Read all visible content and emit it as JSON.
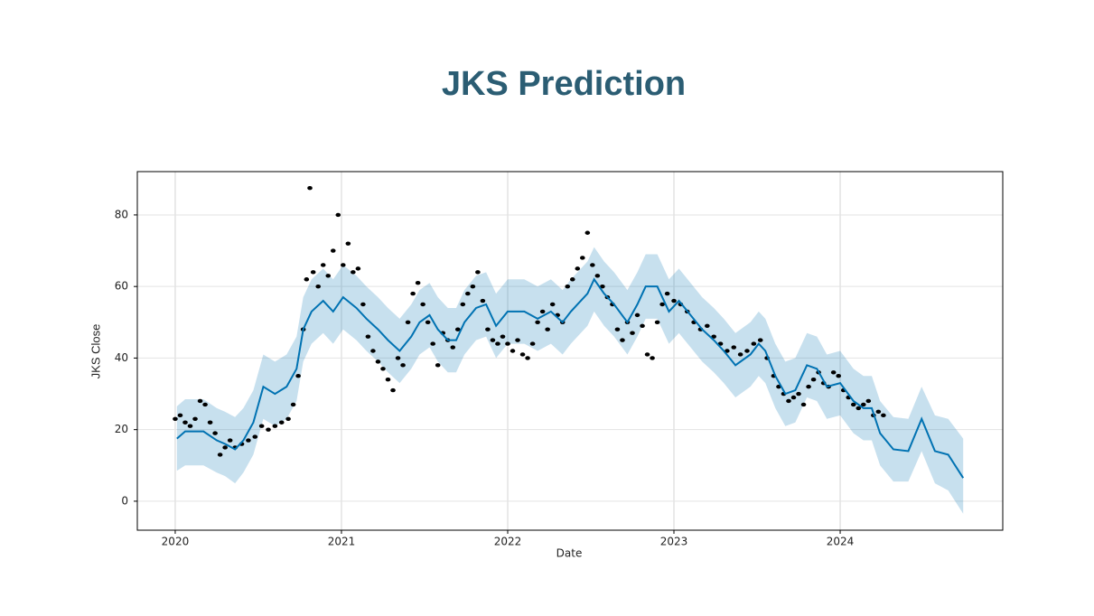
{
  "chart_data": {
    "type": "forecast",
    "title": "JKS Prediction",
    "xlabel": "Date",
    "ylabel": "JKS Close",
    "xlim": [
      2019.772,
      2024.978
    ],
    "ylim": [
      -8.1,
      92.1
    ],
    "xticks": [
      2020,
      2021,
      2022,
      2023,
      2024
    ],
    "yticks": [
      0,
      20,
      40,
      60,
      80
    ],
    "grid": true,
    "forecast": {
      "color": "#0072B2",
      "x": [
        2020.01,
        2020.06,
        2020.17,
        2020.25,
        2020.3,
        2020.36,
        2020.41,
        2020.47,
        2020.53,
        2020.6,
        2020.67,
        2020.73,
        2020.77,
        2020.82,
        2020.89,
        2020.95,
        2021.01,
        2021.09,
        2021.15,
        2021.22,
        2021.28,
        2021.35,
        2021.42,
        2021.47,
        2021.53,
        2021.58,
        2021.64,
        2021.69,
        2021.74,
        2021.81,
        2021.87,
        2021.93,
        2022.0,
        2022.1,
        2022.18,
        2022.26,
        2022.33,
        2022.38,
        2022.42,
        2022.48,
        2022.52,
        2022.58,
        2022.64,
        2022.72,
        2022.78,
        2022.83,
        2022.9,
        2022.97,
        2023.03,
        2023.1,
        2023.17,
        2023.24,
        2023.3,
        2023.37,
        2023.46,
        2023.51,
        2023.55,
        2023.61,
        2023.67,
        2023.73,
        2023.8,
        2023.86,
        2023.92,
        2024.0,
        2024.08,
        2024.14,
        2024.19,
        2024.24,
        2024.32,
        2024.41,
        2024.49,
        2024.57,
        2024.65,
        2024.74
      ],
      "values": [
        17.5,
        19.5,
        19.5,
        17,
        16,
        14.5,
        17,
        22,
        32,
        30,
        32,
        37,
        48,
        53,
        56,
        53,
        57,
        54,
        51,
        48,
        45,
        42,
        46,
        50,
        52,
        48,
        45,
        45,
        50,
        54,
        55,
        49,
        53,
        53,
        51,
        53,
        50,
        53,
        55,
        58,
        62,
        58,
        55,
        50,
        55,
        60,
        60,
        53,
        56,
        52,
        48,
        45,
        42,
        38,
        41,
        44,
        42,
        35,
        30,
        31,
        38,
        37,
        32,
        33,
        28,
        26,
        26,
        19,
        14.5,
        14,
        23,
        14,
        13,
        6.5
      ],
      "lower": [
        8.5,
        10,
        10,
        8,
        7,
        5,
        8,
        13,
        23,
        21,
        23,
        28,
        39,
        44,
        47,
        44,
        48,
        45,
        42,
        39,
        36,
        33,
        37,
        41,
        43,
        39,
        36,
        36,
        41,
        45,
        46,
        40,
        44,
        44,
        42,
        44,
        41,
        44,
        46,
        49,
        53,
        49,
        46,
        41,
        46,
        51,
        51,
        44,
        47,
        43,
        39,
        36,
        33,
        29,
        32,
        35,
        33,
        26,
        21,
        22,
        29,
        28,
        23,
        24,
        19,
        17,
        17,
        10,
        5.5,
        5.5,
        14,
        5,
        3,
        -3.5
      ],
      "upper": [
        26.5,
        28.5,
        28.5,
        26,
        25,
        23.5,
        26,
        31,
        41,
        39,
        41,
        46,
        57,
        62,
        65,
        62,
        66,
        63,
        60,
        57,
        54,
        51,
        55,
        59,
        61,
        57,
        54,
        54,
        59,
        63,
        64,
        58,
        62,
        62,
        60,
        62,
        59,
        62,
        64,
        67,
        71,
        67,
        64,
        59,
        64,
        69,
        69,
        62,
        65,
        61,
        57,
        54,
        51,
        47,
        50,
        53,
        51,
        44,
        39,
        40,
        47,
        46,
        41,
        42,
        37,
        35,
        35,
        28,
        23.5,
        23,
        32,
        24,
        23,
        17.5
      ]
    },
    "actual": {
      "color": "#000000",
      "x": [
        2020.0,
        2020.03,
        2020.06,
        2020.09,
        2020.12,
        2020.15,
        2020.18,
        2020.21,
        2020.24,
        2020.27,
        2020.3,
        2020.33,
        2020.36,
        2020.4,
        2020.44,
        2020.48,
        2020.52,
        2020.56,
        2020.6,
        2020.64,
        2020.68,
        2020.71,
        2020.74,
        2020.77,
        2020.79,
        2020.81,
        2020.83,
        2020.86,
        2020.89,
        2020.92,
        2020.95,
        2020.98,
        2021.01,
        2021.04,
        2021.07,
        2021.1,
        2021.13,
        2021.16,
        2021.19,
        2021.22,
        2021.25,
        2021.28,
        2021.31,
        2021.34,
        2021.37,
        2021.4,
        2021.43,
        2021.46,
        2021.49,
        2021.52,
        2021.55,
        2021.58,
        2021.61,
        2021.64,
        2021.67,
        2021.7,
        2021.73,
        2021.76,
        2021.79,
        2021.82,
        2021.85,
        2021.88,
        2021.91,
        2021.94,
        2021.97,
        2022.0,
        2022.03,
        2022.06,
        2022.09,
        2022.12,
        2022.15,
        2022.18,
        2022.21,
        2022.24,
        2022.27,
        2022.3,
        2022.33,
        2022.36,
        2022.39,
        2022.42,
        2022.45,
        2022.48,
        2022.51,
        2022.54,
        2022.57,
        2022.6,
        2022.63,
        2022.66,
        2022.69,
        2022.72,
        2022.75,
        2022.78,
        2022.81,
        2022.84,
        2022.87,
        2022.9,
        2022.93,
        2022.96,
        2023.0,
        2023.04,
        2023.08,
        2023.12,
        2023.16,
        2023.2,
        2023.24,
        2023.28,
        2023.32,
        2023.36,
        2023.4,
        2023.44,
        2023.48,
        2023.52,
        2023.56,
        2023.6,
        2023.63,
        2023.66,
        2023.69,
        2023.72,
        2023.75,
        2023.78,
        2023.81,
        2023.84,
        2023.87,
        2023.9,
        2023.93,
        2023.96,
        2023.99,
        2024.02,
        2024.05,
        2024.08,
        2024.11,
        2024.14,
        2024.17,
        2024.2,
        2024.23,
        2024.26
      ],
      "values": [
        23,
        24,
        22,
        21,
        23,
        28,
        27,
        22,
        19,
        13,
        15,
        17,
        15,
        16,
        17,
        18,
        21,
        20,
        21,
        22,
        23,
        27,
        35,
        48,
        62,
        87.5,
        64,
        60,
        66,
        63,
        70,
        80,
        66,
        72,
        64,
        65,
        55,
        46,
        42,
        39,
        37,
        34,
        31,
        40,
        38,
        50,
        58,
        61,
        55,
        50,
        44,
        38,
        47,
        45,
        43,
        48,
        55,
        58,
        60,
        64,
        56,
        48,
        45,
        44,
        46,
        44,
        42,
        45,
        41,
        40,
        44,
        50,
        53,
        48,
        55,
        52,
        50,
        60,
        62,
        65,
        68,
        75,
        66,
        63,
        60,
        57,
        55,
        48,
        45,
        50,
        47,
        52,
        49,
        41,
        40,
        50,
        55,
        58,
        56,
        55,
        53,
        50,
        48,
        49,
        46,
        44,
        42,
        43,
        41,
        42,
        44,
        45,
        40,
        35,
        32,
        30,
        28,
        29,
        30,
        27,
        32,
        34,
        36,
        33,
        32,
        36,
        35,
        31,
        29,
        27,
        26,
        27,
        28,
        24,
        25,
        24
      ]
    }
  }
}
